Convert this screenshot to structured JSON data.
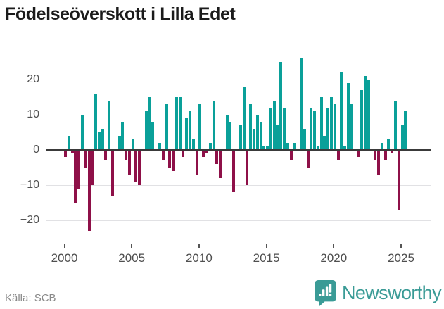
{
  "title": "Födelseöverskott i Lilla Edet",
  "source": "Källa: SCB",
  "logo": {
    "wordmark": "Newsworthy",
    "icon": "bar-chart-speech-bubble"
  },
  "colors": {
    "positive_bar": "#0aa099",
    "negative_bar": "#8e1048",
    "gridline": "#e1e1e4",
    "zero_line": "#3a3a3a",
    "axis_text": "#515151",
    "title_text": "#1b1b1b",
    "source_text": "#8a8a8a",
    "logo_teal": "#3a9b96"
  },
  "chart_data": {
    "type": "bar",
    "title": "Födelseöverskott i Lilla Edet",
    "frequency": "quarterly",
    "start_period": "2000-Q1",
    "end_period": "2025-Q2",
    "xlabel": "",
    "ylabel": "",
    "grid": true,
    "ylim": [
      -26,
      27
    ],
    "y_ticks": [
      20,
      10,
      0,
      -10,
      -20
    ],
    "y_tick_labels": [
      "20",
      "10",
      "0",
      "−10",
      "−20"
    ],
    "x_tick_years": [
      2000,
      2005,
      2010,
      2015,
      2020,
      2025
    ],
    "x_tick_labels": [
      "2000",
      "2005",
      "2010",
      "2015",
      "2020",
      "2025"
    ],
    "values": [
      -2,
      4,
      -1,
      -15,
      -11,
      10,
      -5,
      -23,
      -10,
      16,
      5,
      6,
      -3,
      14,
      -13,
      0,
      4,
      8,
      -3,
      -7,
      3,
      -9,
      -10,
      0,
      11,
      15,
      8,
      0,
      2,
      -3,
      13,
      -5,
      -6,
      15,
      15,
      -2,
      9,
      11,
      3,
      -7,
      13,
      -2,
      -1,
      2,
      14,
      -4,
      -8,
      0,
      10,
      8,
      -12,
      0,
      7,
      18,
      -10,
      13,
      6,
      10,
      8,
      1,
      1,
      12,
      14,
      7,
      25,
      12,
      2,
      -3,
      2,
      0,
      26,
      6,
      -5,
      12,
      11,
      1,
      15,
      4,
      12,
      15,
      13,
      -3,
      22,
      1,
      19,
      13,
      0,
      -2,
      17,
      21,
      20,
      0,
      -3,
      -7,
      2,
      -3,
      3,
      -1,
      14,
      -17,
      7,
      11
    ]
  }
}
